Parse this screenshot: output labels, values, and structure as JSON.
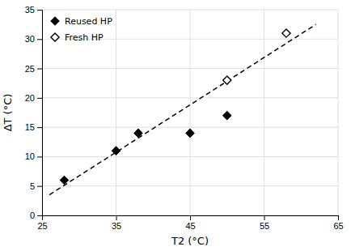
{
  "chart_data": {
    "type": "scatter",
    "xlabel": "T2 (°C)",
    "ylabel": "ΔT (°C)",
    "xlim": [
      25,
      65
    ],
    "ylim": [
      0,
      35
    ],
    "xticks": [
      25,
      35,
      45,
      55,
      65
    ],
    "yticks": [
      0,
      5,
      10,
      15,
      20,
      25,
      30,
      35
    ],
    "grid": true,
    "legend": "upper left",
    "series": [
      {
        "type": "line",
        "line_style": "dashed",
        "color": "#000000",
        "x": [
          26,
          62
        ],
        "values": [
          3.5,
          32.5
        ]
      },
      {
        "name": "Reused HP",
        "type": "scatter",
        "marker": "diamond",
        "color": "#000000",
        "x": [
          28,
          35,
          38,
          45,
          50
        ],
        "values": [
          6,
          11,
          14,
          14,
          17
        ]
      },
      {
        "name": "Fresh HP",
        "type": "scatter",
        "marker": "diamond-open",
        "color": "#000000",
        "x": [
          50,
          58
        ],
        "values": [
          23,
          31
        ]
      }
    ]
  }
}
